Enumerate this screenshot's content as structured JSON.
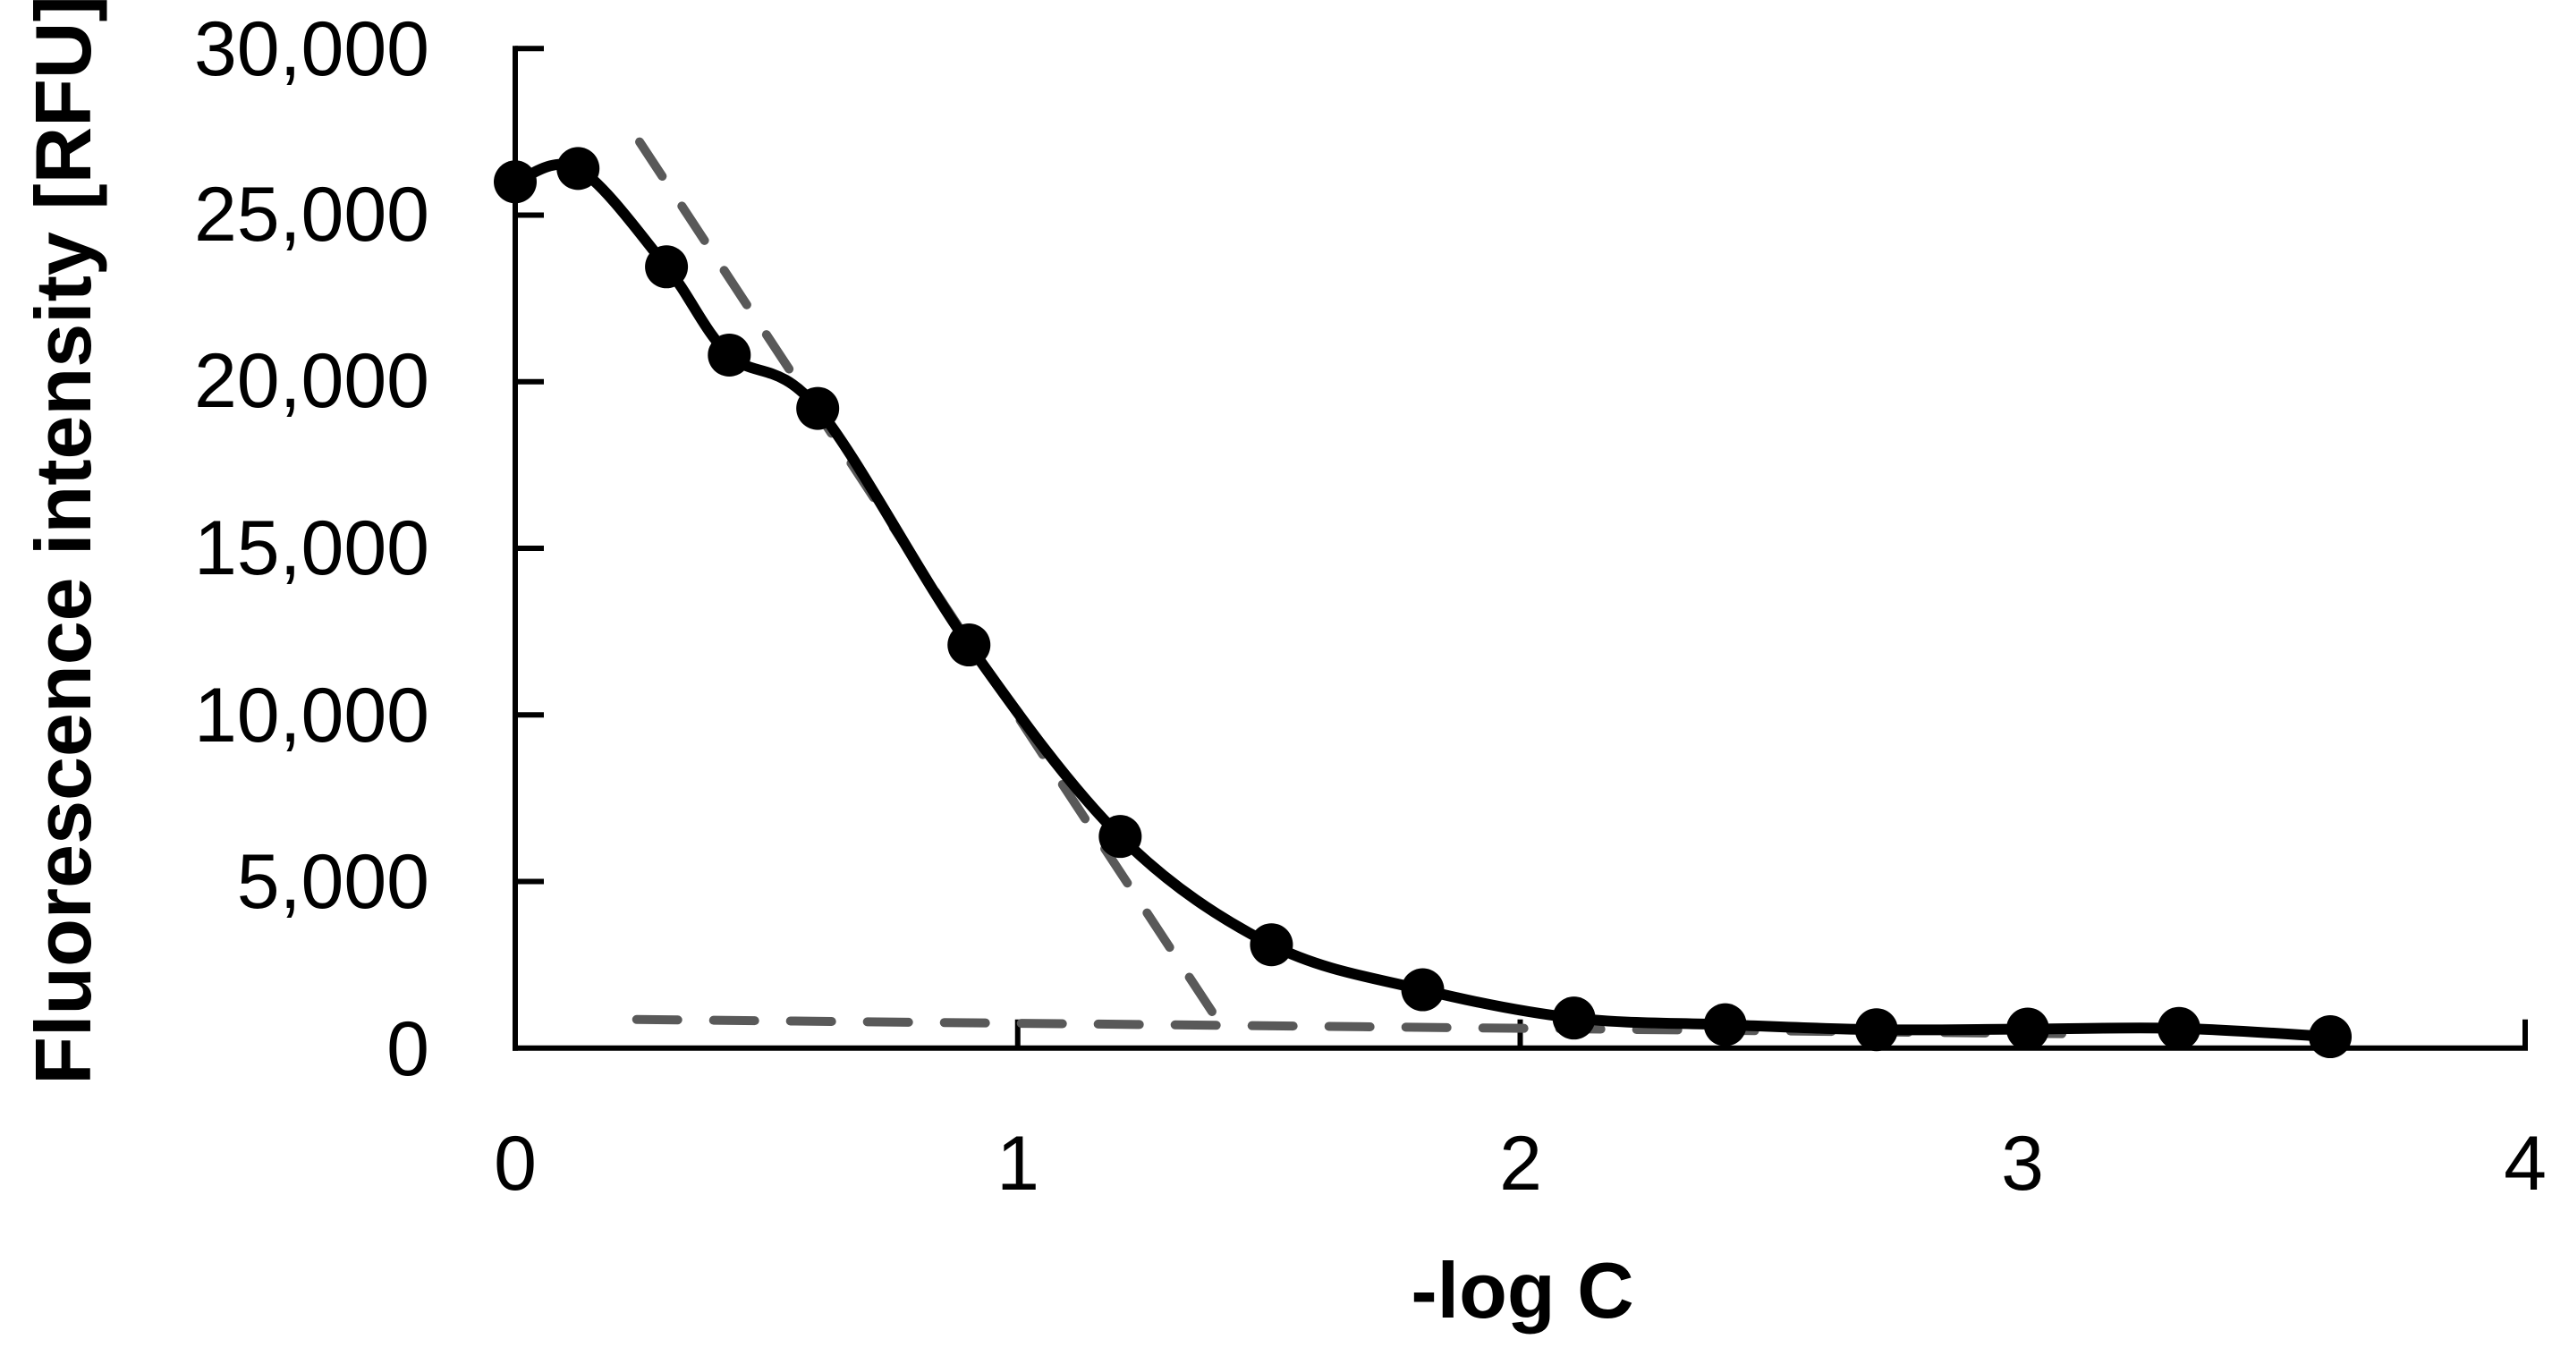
{
  "chart_data": {
    "type": "scatter",
    "title": "",
    "xlabel": "-log C",
    "ylabel": "Fluorescence intensity [RFU]",
    "xlim": [
      0,
      4
    ],
    "ylim": [
      0,
      30000
    ],
    "grid": false,
    "legend": null,
    "x_ticks": [
      "0",
      "1",
      "2",
      "3",
      "4"
    ],
    "y_ticks": [
      "0",
      "5,000",
      "10,000",
      "15,000",
      "20,000",
      "25,000",
      "30,000"
    ],
    "series": [
      {
        "name": "Fluorescence intensity",
        "style": "smoothed line with circle markers",
        "color": "#000000",
        "x": [
          0,
          0.125,
          0.301,
          0.426,
          0.602,
          0.903,
          1.204,
          1.505,
          1.806,
          2.107,
          2.408,
          2.709,
          3.01,
          3.311,
          3.612
        ],
        "y": [
          26000,
          26400,
          23450,
          20800,
          19200,
          12100,
          6350,
          3100,
          1750,
          900,
          700,
          550,
          570,
          590,
          340
        ]
      }
    ],
    "annotations": [
      {
        "name": "linear-range-fit",
        "style": "dashed",
        "color": "#595959",
        "x": [
          0.2475,
          1.399
        ],
        "y": [
          27200,
          810
        ]
      },
      {
        "name": "background-baseline",
        "style": "dashed",
        "color": "#595959",
        "x": [
          0.2416,
          3.078
        ],
        "y": [
          857,
          430
        ]
      }
    ]
  }
}
